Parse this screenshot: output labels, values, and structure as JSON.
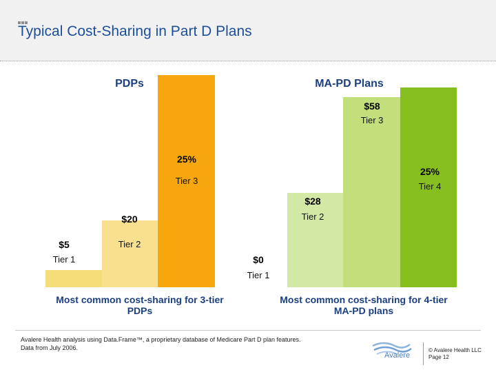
{
  "header": {
    "title": "Typical Cost-Sharing in Part D Plans"
  },
  "chart_data": [
    {
      "type": "bar",
      "group_label": "PDPs",
      "categories": [
        "Tier 1",
        "Tier 2",
        "Tier 3"
      ],
      "value_labels": [
        "$5",
        "$20",
        "25%"
      ],
      "heights": [
        25,
        97,
        308
      ],
      "colors": [
        "#f5de7a",
        "#f8e08e",
        "#f7a70e"
      ],
      "caption": "Most common cost-sharing for 3-tier PDPs"
    },
    {
      "type": "bar",
      "group_label": "MA-PD Plans",
      "categories": [
        "Tier 1",
        "Tier 2",
        "Tier 3",
        "Tier 4"
      ],
      "value_labels": [
        "$0",
        "$28",
        "$58",
        "25%"
      ],
      "heights": [
        0,
        137,
        276,
        290
      ],
      "colors": [
        "#ffffff",
        "#d2e8a4",
        "#c2df7c",
        "#86bf1f"
      ],
      "caption": "Most common cost-sharing for 4-tier MA-PD plans"
    }
  ],
  "footer": {
    "note_line1": "Avalere Health analysis using Data.Frame™, a proprietary database of Medicare Part D plan features.",
    "note_line2": "Data from July 2006.",
    "logo_text": "Avalere",
    "copyright_line1": "© Avalere Health LLC",
    "copyright_line2": "Page 12"
  }
}
